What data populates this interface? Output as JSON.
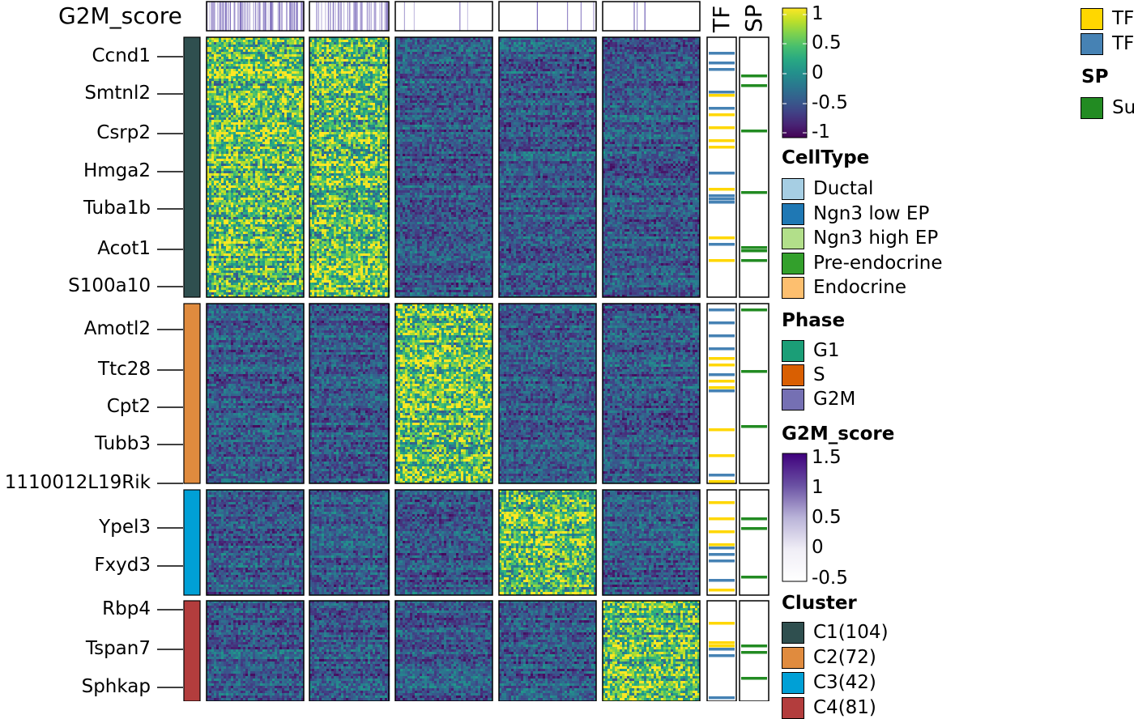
{
  "chart_data": {
    "type": "heatmap",
    "top_annotation": {
      "name": "G2M_score"
    },
    "right_annotations": [
      "TF",
      "SP"
    ],
    "genes": [
      {
        "label": "Ccnd1",
        "cluster": "C1"
      },
      {
        "label": "Smtnl2",
        "cluster": "C1"
      },
      {
        "label": "Csrp2",
        "cluster": "C1"
      },
      {
        "label": "Hmga2",
        "cluster": "C1"
      },
      {
        "label": "Tuba1b",
        "cluster": "C1"
      },
      {
        "label": "Acot1",
        "cluster": "C1"
      },
      {
        "label": "S100a10",
        "cluster": "C1"
      },
      {
        "label": "Amotl2",
        "cluster": "C2"
      },
      {
        "label": "Ttc28",
        "cluster": "C2"
      },
      {
        "label": "Cpt2",
        "cluster": "C2"
      },
      {
        "label": "Tubb3",
        "cluster": "C2"
      },
      {
        "label": "1110012L19Rik",
        "cluster": "C2"
      },
      {
        "label": "Ypel3",
        "cluster": "C3"
      },
      {
        "label": "Fxyd3",
        "cluster": "C3"
      },
      {
        "label": "Rbp4",
        "cluster": "C4"
      },
      {
        "label": "Tspan7",
        "cluster": "C4"
      },
      {
        "label": "Sphkap",
        "cluster": "C4"
      }
    ],
    "column_groups": [
      "Ductal",
      "Ngn3 low EP",
      "Ngn3 high EP",
      "Pre-endocrine",
      "Endocrine"
    ],
    "row_clusters": [
      {
        "name": "C1",
        "count": 104,
        "high_in": "Ductal / Ngn3 low EP",
        "color": "#2F4F4F"
      },
      {
        "name": "C2",
        "count": 72,
        "high_in": "Ngn3 high EP",
        "color": "#E08B3E"
      },
      {
        "name": "C3",
        "count": 42,
        "high_in": "Pre-endocrine",
        "color": "#00A0D6"
      },
      {
        "name": "C4",
        "count": null,
        "high_in": "Endocrine",
        "color": "#B33D3D"
      }
    ],
    "legends": {
      "expression": {
        "ticks": [
          "1",
          "0.5",
          "0",
          "-0.5",
          "-1"
        ],
        "range": [
          -1,
          1
        ],
        "palette": "viridis"
      },
      "celltype": {
        "title": "CellType",
        "items": [
          {
            "label": "Ductal",
            "color": "#A6CEE3"
          },
          {
            "label": "Ngn3 low EP",
            "color": "#1F78B4"
          },
          {
            "label": "Ngn3 high EP",
            "color": "#B2DF8A"
          },
          {
            "label": "Pre-endocrine",
            "color": "#33A02C"
          },
          {
            "label": "Endocrine",
            "color": "#FDBF6F"
          }
        ]
      },
      "phase": {
        "title": "Phase",
        "items": [
          {
            "label": "G1",
            "color": "#1B9E77"
          },
          {
            "label": "S",
            "color": "#D95F02"
          },
          {
            "label": "G2M",
            "color": "#7570B3"
          }
        ]
      },
      "g2m_score": {
        "title": "G2M_score",
        "ticks": [
          "1.5",
          "1",
          "0.5",
          "0",
          "-0.5"
        ],
        "range": [
          -0.5,
          1.5
        ]
      },
      "cluster": {
        "title": "Cluster",
        "items": [
          {
            "label": "C1(104)",
            "color": "#2F4F4F"
          },
          {
            "label": "C2(72)",
            "color": "#E08B3E"
          },
          {
            "label": "C3(42)",
            "color": "#00A0D6"
          },
          {
            "label": "C4(81)",
            "color": "#B33D3D"
          }
        ]
      },
      "tf": {
        "items": [
          {
            "label": "TF",
            "color": "#FFD700"
          },
          {
            "label": "TF",
            "color": "#4682B4"
          }
        ]
      },
      "sp": {
        "title": "SP",
        "items": [
          {
            "label": "Su",
            "color": "#228B22"
          }
        ]
      }
    }
  }
}
